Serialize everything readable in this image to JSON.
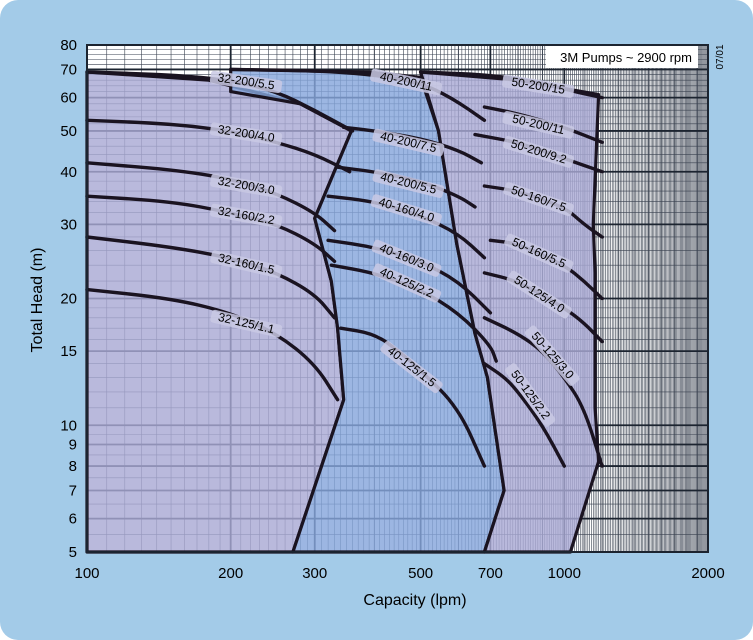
{
  "colors": {
    "panel": "#a3cbe8",
    "plot_bg": "#ffffff",
    "grid_major": "#1c2430",
    "grid_minor": "#3a4250",
    "family_32": "#a9a9d4",
    "family_40": "#86a6dc",
    "family_50": "#a9a9d4",
    "curve": "#1a1320",
    "label_bg": "#c9c9e4"
  },
  "chart_data": {
    "type": "line",
    "title": "3M Pumps ~ 2900 rpm",
    "revision": "07/01",
    "xlabel": "Capacity  (lpm)",
    "ylabel": "Total Head  (m)",
    "x_scale": "log",
    "y_scale": "log",
    "xlim": [
      100,
      2000
    ],
    "ylim": [
      5,
      80
    ],
    "grid": true,
    "x_ticks": [
      {
        "value": 100,
        "label": "100"
      },
      {
        "value": 200,
        "label": "200"
      },
      {
        "value": 300,
        "label": "300"
      },
      {
        "value": 500,
        "label": "500"
      },
      {
        "value": 700,
        "label": "700"
      },
      {
        "value": 1000,
        "label": "1000"
      },
      {
        "value": 2000,
        "label": "2000"
      }
    ],
    "y_ticks": [
      {
        "value": 5,
        "label": "5"
      },
      {
        "value": 6,
        "label": "6"
      },
      {
        "value": 7,
        "label": "7"
      },
      {
        "value": 8,
        "label": "8"
      },
      {
        "value": 9,
        "label": "9"
      },
      {
        "value": 10,
        "label": "10"
      },
      {
        "value": 15,
        "label": "15"
      },
      {
        "value": 20,
        "label": "20"
      },
      {
        "value": 30,
        "label": "30"
      },
      {
        "value": 40,
        "label": "40"
      },
      {
        "value": 50,
        "label": "50"
      },
      {
        "value": 60,
        "label": "60"
      },
      {
        "value": 70,
        "label": "70"
      },
      {
        "value": 80,
        "label": "80"
      }
    ],
    "families": [
      {
        "name": "32",
        "color_key": "family_32",
        "region": [
          [
            100,
            69
          ],
          [
            180,
            66
          ],
          [
            280,
            58
          ],
          [
            358,
            50
          ],
          [
            300,
            31
          ],
          [
            325,
            22
          ],
          [
            335,
            17
          ],
          [
            345,
            11.5
          ],
          [
            270,
            5
          ],
          [
            100,
            5
          ]
        ]
      },
      {
        "name": "40",
        "color_key": "family_40",
        "region": [
          [
            200,
            70
          ],
          [
            390,
            69
          ],
          [
            500,
            67
          ],
          [
            545,
            50
          ],
          [
            595,
            27
          ],
          [
            650,
            16.5
          ],
          [
            690,
            13
          ],
          [
            748,
            7
          ],
          [
            680,
            5
          ],
          [
            270,
            5
          ],
          [
            345,
            11.5
          ],
          [
            335,
            17
          ],
          [
            325,
            22
          ],
          [
            300,
            31
          ],
          [
            358,
            50
          ],
          [
            280,
            58
          ],
          [
            200,
            62
          ]
        ]
      },
      {
        "name": "50",
        "color_key": "family_50",
        "region": [
          [
            500,
            69
          ],
          [
            800,
            66
          ],
          [
            1180,
            61
          ],
          [
            1150,
            30
          ],
          [
            1160,
            23
          ],
          [
            1160,
            11
          ],
          [
            1180,
            8.2
          ],
          [
            1030,
            5
          ],
          [
            680,
            5
          ],
          [
            748,
            7
          ],
          [
            690,
            13
          ],
          [
            650,
            16.5
          ],
          [
            595,
            27
          ],
          [
            545,
            50
          ]
        ]
      }
    ],
    "series": [
      {
        "name": "32-200/5.5",
        "points": [
          [
            100,
            69
          ],
          [
            150,
            68
          ],
          [
            200,
            66
          ],
          [
            250,
            62
          ],
          [
            300,
            56
          ],
          [
            360,
            50
          ]
        ]
      },
      {
        "name": "32-200/4.0",
        "points": [
          [
            100,
            53
          ],
          [
            150,
            52
          ],
          [
            200,
            50
          ],
          [
            250,
            47
          ],
          [
            300,
            44
          ],
          [
            355,
            40
          ]
        ]
      },
      {
        "name": "32-200/3.0",
        "points": [
          [
            100,
            42
          ],
          [
            150,
            40.5
          ],
          [
            200,
            38.5
          ],
          [
            250,
            35.5
          ],
          [
            300,
            32
          ],
          [
            330,
            29
          ]
        ]
      },
      {
        "name": "32-160/2.2",
        "points": [
          [
            100,
            35
          ],
          [
            150,
            34
          ],
          [
            200,
            32
          ],
          [
            250,
            30
          ],
          [
            300,
            27
          ],
          [
            330,
            24.5
          ]
        ]
      },
      {
        "name": "32-160/1.5",
        "points": [
          [
            100,
            28
          ],
          [
            150,
            26.5
          ],
          [
            200,
            25
          ],
          [
            250,
            23
          ],
          [
            300,
            20.5
          ],
          [
            330,
            18
          ]
        ]
      },
      {
        "name": "32-125/1.1",
        "points": [
          [
            100,
            21
          ],
          [
            150,
            20
          ],
          [
            200,
            18.5
          ],
          [
            250,
            16.5
          ],
          [
            300,
            14
          ],
          [
            335,
            11.5
          ]
        ]
      },
      {
        "name": "40-200/11",
        "points": [
          [
            200,
            70
          ],
          [
            300,
            69.5
          ],
          [
            400,
            68
          ],
          [
            500,
            65
          ],
          [
            580,
            60
          ],
          [
            680,
            53
          ]
        ]
      },
      {
        "name": "40-200/7.5",
        "points": [
          [
            345,
            51
          ],
          [
            400,
            50
          ],
          [
            500,
            48
          ],
          [
            600,
            45
          ],
          [
            670,
            42
          ]
        ]
      },
      {
        "name": "40-200/5.5",
        "points": [
          [
            335,
            41
          ],
          [
            400,
            40
          ],
          [
            500,
            38
          ],
          [
            600,
            35
          ],
          [
            650,
            33
          ]
        ]
      },
      {
        "name": "40-160/4.0",
        "points": [
          [
            320,
            35
          ],
          [
            400,
            34
          ],
          [
            500,
            31.5
          ],
          [
            600,
            28.5
          ],
          [
            680,
            25
          ]
        ]
      },
      {
        "name": "40-160/3.0",
        "points": [
          [
            320,
            27.5
          ],
          [
            400,
            26.5
          ],
          [
            500,
            24.5
          ],
          [
            600,
            22
          ],
          [
            700,
            18.5
          ]
        ]
      },
      {
        "name": "40-125/2.2",
        "points": [
          [
            325,
            24
          ],
          [
            400,
            23
          ],
          [
            500,
            21
          ],
          [
            600,
            18.5
          ],
          [
            700,
            15.5
          ],
          [
            720,
            14.2
          ]
        ]
      },
      {
        "name": "40-125/1.5",
        "points": [
          [
            340,
            17
          ],
          [
            400,
            16.5
          ],
          [
            450,
            15
          ],
          [
            500,
            13.5
          ],
          [
            600,
            11
          ],
          [
            680,
            8
          ]
        ]
      },
      {
        "name": "50-200/15",
        "points": [
          [
            500,
            69
          ],
          [
            700,
            68
          ],
          [
            900,
            65
          ],
          [
            1050,
            62
          ],
          [
            1200,
            60
          ]
        ]
      },
      {
        "name": "50-200/11",
        "points": [
          [
            680,
            57
          ],
          [
            800,
            55
          ],
          [
            1000,
            51
          ],
          [
            1200,
            47
          ]
        ]
      },
      {
        "name": "50-200/9.2",
        "points": [
          [
            650,
            49
          ],
          [
            800,
            47
          ],
          [
            1000,
            43
          ],
          [
            1200,
            40
          ]
        ]
      },
      {
        "name": "50-160/7.5",
        "points": [
          [
            680,
            37
          ],
          [
            800,
            36
          ],
          [
            1000,
            33
          ],
          [
            1100,
            30
          ],
          [
            1200,
            28
          ]
        ]
      },
      {
        "name": "50-160/5.5",
        "points": [
          [
            700,
            27.5
          ],
          [
            800,
            27
          ],
          [
            1000,
            24
          ],
          [
            1100,
            22
          ],
          [
            1200,
            20
          ]
        ]
      },
      {
        "name": "50-125/4.0",
        "points": [
          [
            680,
            23
          ],
          [
            800,
            22
          ],
          [
            1000,
            19
          ],
          [
            1100,
            17.5
          ],
          [
            1200,
            15.8
          ]
        ]
      },
      {
        "name": "50-125/3.0",
        "points": [
          [
            680,
            18
          ],
          [
            800,
            16.5
          ],
          [
            900,
            15
          ],
          [
            1000,
            13
          ],
          [
            1100,
            11
          ],
          [
            1200,
            8
          ]
        ]
      },
      {
        "name": "50-125/2.2",
        "points": [
          [
            680,
            14
          ],
          [
            750,
            13
          ],
          [
            800,
            12
          ],
          [
            900,
            10
          ],
          [
            1000,
            8
          ]
        ]
      }
    ],
    "labels": [
      {
        "text": "32-200/5.5",
        "x": 215,
        "y": 64.5,
        "angle": 8
      },
      {
        "text": "32-200/4.0",
        "x": 215,
        "y": 48.5,
        "angle": 9
      },
      {
        "text": "32-200/3.0",
        "x": 215,
        "y": 36.5,
        "angle": 10
      },
      {
        "text": "32-160/2.2",
        "x": 215,
        "y": 31,
        "angle": 10
      },
      {
        "text": "32-160/1.5",
        "x": 215,
        "y": 23.8,
        "angle": 13
      },
      {
        "text": "32-125/1.1",
        "x": 215,
        "y": 17.2,
        "angle": 13
      },
      {
        "text": "40-200/11",
        "x": 465,
        "y": 64.5,
        "angle": 12
      },
      {
        "text": "40-200/7.5",
        "x": 470,
        "y": 46.3,
        "angle": 13
      },
      {
        "text": "40-200/5.5",
        "x": 470,
        "y": 37,
        "angle": 14
      },
      {
        "text": "40-160/4.0",
        "x": 465,
        "y": 32,
        "angle": 17
      },
      {
        "text": "40-160/3.0",
        "x": 465,
        "y": 24.6,
        "angle": 22
      },
      {
        "text": "40-125/2.2",
        "x": 465,
        "y": 21.5,
        "angle": 24
      },
      {
        "text": "40-125/1.5",
        "x": 475,
        "y": 13.6,
        "angle": 38
      },
      {
        "text": "50-200/15",
        "x": 880,
        "y": 63,
        "angle": 9
      },
      {
        "text": "50-200/11",
        "x": 880,
        "y": 51,
        "angle": 13
      },
      {
        "text": "50-200/9.2",
        "x": 880,
        "y": 44,
        "angle": 17
      },
      {
        "text": "50-160/7.5",
        "x": 880,
        "y": 34,
        "angle": 19
      },
      {
        "text": "50-160/5.5",
        "x": 880,
        "y": 25.3,
        "angle": 24
      },
      {
        "text": "50-125/4.0",
        "x": 880,
        "y": 20.2,
        "angle": 33
      },
      {
        "text": "50-125/3.0",
        "x": 935,
        "y": 14.5,
        "angle": 49
      },
      {
        "text": "50-125/2.2",
        "x": 840,
        "y": 11.7,
        "angle": 54
      }
    ]
  }
}
